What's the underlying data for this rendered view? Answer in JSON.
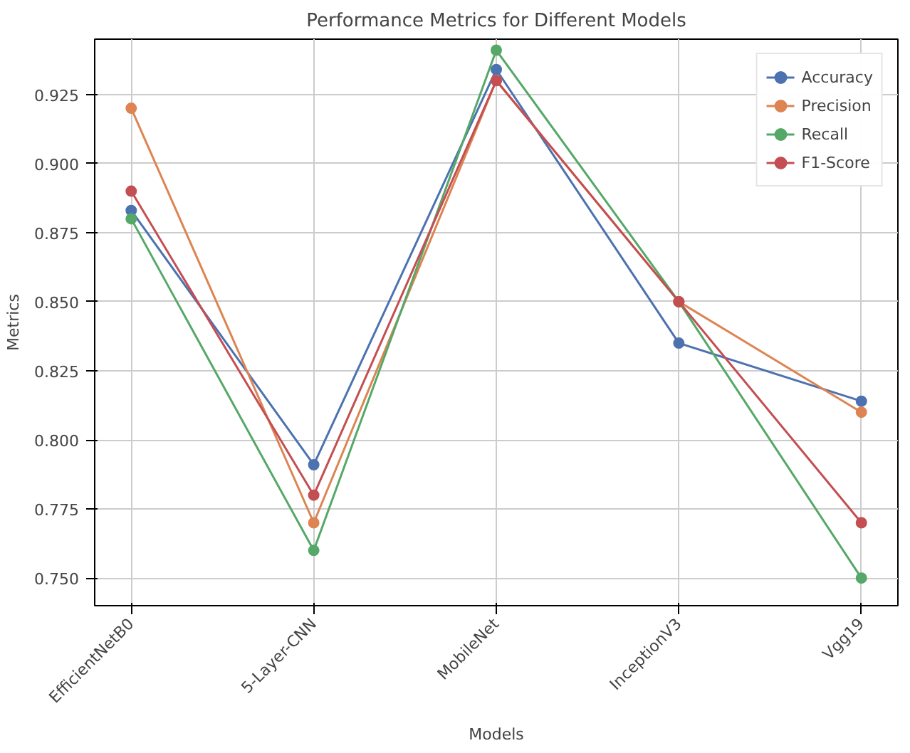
{
  "chart_data": {
    "type": "line",
    "title": "Performance Metrics for Different Models",
    "xlabel": "Models",
    "ylabel": "Metrics",
    "categories": [
      "EfficientNetB0",
      "5-Layer-CNN",
      "MobileNet",
      "InceptionV3",
      "Vgg19"
    ],
    "series": [
      {
        "name": "Accuracy",
        "color": "#4c72b0",
        "values": [
          0.883,
          0.791,
          0.934,
          0.835,
          0.814
        ]
      },
      {
        "name": "Precision",
        "color": "#dd8452",
        "values": [
          0.92,
          0.77,
          0.93,
          0.85,
          0.81
        ]
      },
      {
        "name": "Recall",
        "color": "#55a868",
        "values": [
          0.88,
          0.76,
          0.941,
          0.85,
          0.75
        ]
      },
      {
        "name": "F1-Score",
        "color": "#c44e52",
        "values": [
          0.89,
          0.78,
          0.93,
          0.85,
          0.77
        ]
      }
    ],
    "ylim": [
      0.74,
      0.945
    ],
    "yticks": [
      {
        "value": 0.75,
        "label": "0.750"
      },
      {
        "value": 0.775,
        "label": "0.775"
      },
      {
        "value": 0.8,
        "label": "0.800"
      },
      {
        "value": 0.825,
        "label": "0.825"
      },
      {
        "value": 0.85,
        "label": "0.850"
      },
      {
        "value": 0.875,
        "label": "0.875"
      },
      {
        "value": 0.9,
        "label": "0.900"
      },
      {
        "value": 0.925,
        "label": "0.925"
      }
    ],
    "grid": true,
    "legend": "top right",
    "marker": "circle",
    "line_style": "solid"
  }
}
